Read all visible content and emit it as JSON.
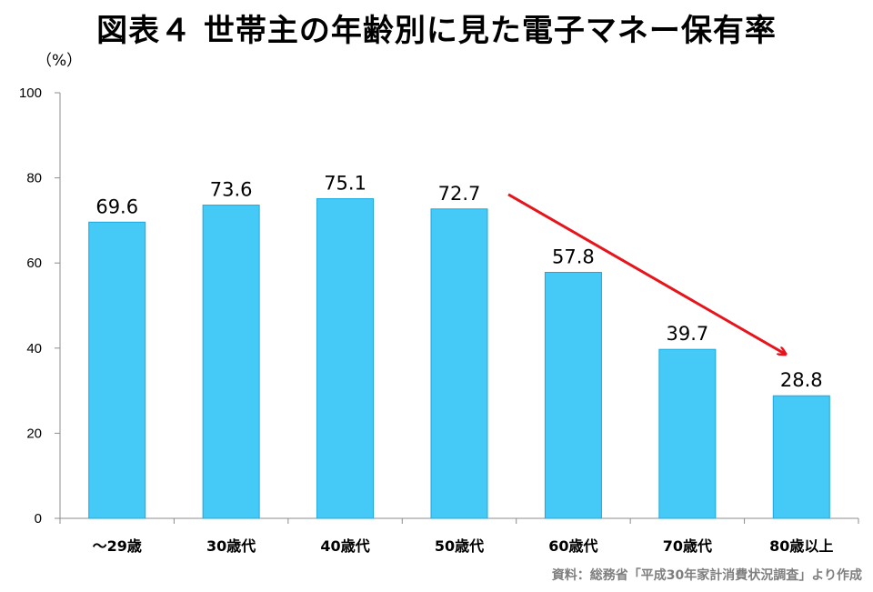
{
  "chart_data": {
    "type": "bar",
    "title": "図表４ 世帯主の年齢別に見た電子マネー保有率",
    "ylabel": "（%）",
    "xlabel": "",
    "categories": [
      "～29歳",
      "30歳代",
      "40歳代",
      "50歳代",
      "60歳代",
      "70歳代",
      "80歳以上"
    ],
    "values": [
      69.6,
      73.6,
      75.1,
      72.7,
      57.8,
      39.7,
      28.8
    ],
    "ylim": [
      0,
      100
    ],
    "yticks": [
      0,
      20,
      40,
      60,
      80,
      100
    ],
    "value_labels": [
      "69.6",
      "73.6",
      "75.1",
      "72.7",
      "57.8",
      "39.7",
      "28.8"
    ],
    "grid": false,
    "annotation": "downward trend arrow from 50歳代 to 80歳以上",
    "source": "資料：総務省「平成30年家計消費状況調査」より作成",
    "colors": {
      "bar": "#45CAF8",
      "bar_edge": "#1ba8dc",
      "arrow": "#E8141B",
      "axis": "#8c8c8c"
    }
  }
}
